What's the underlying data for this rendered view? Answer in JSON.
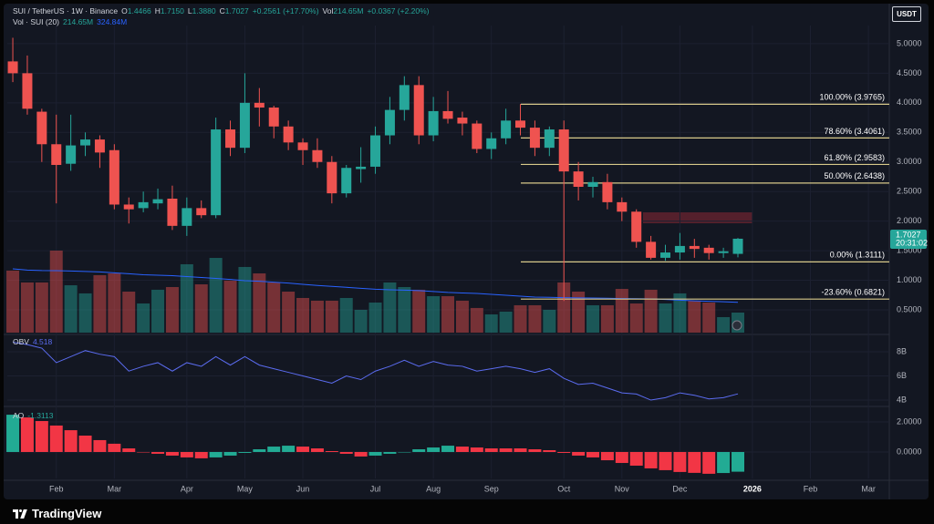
{
  "header": {
    "symbol": "SUI / TetherUS · 1W · Binance",
    "fields": [
      {
        "key": "O",
        "value": "1.4466"
      },
      {
        "key": "H",
        "value": "1.7150"
      },
      {
        "key": "L",
        "value": "1.3880"
      },
      {
        "key": "C",
        "value": "1.7027"
      }
    ],
    "change": "+0.2561 (+17.70%)",
    "volume_key": "Vol",
    "volume": "214.65M",
    "volume_change": "+0.0367 (+2.20%)"
  },
  "currency": "USDT",
  "brand": "TradingView",
  "chart_data": [
    {
      "type": "candlestick",
      "categories": [
        null,
        null,
        null,
        null,
        null,
        null,
        null,
        null,
        null,
        null,
        null,
        null,
        null,
        null,
        null,
        null,
        null,
        null,
        null,
        null,
        null,
        null,
        null,
        null,
        null,
        null,
        null,
        null,
        null,
        null,
        null,
        null,
        null,
        null,
        null,
        null,
        null,
        null,
        null,
        null,
        null,
        null,
        null,
        null,
        null,
        null,
        null,
        null,
        null,
        null,
        null
      ],
      "series": [
        {
          "name": "SUI / TetherUS · 1W · Binance",
          "open": [
            4.7,
            4.5,
            3.85,
            3.3,
            2.97,
            3.28,
            3.38,
            3.2,
            2.28,
            2.22,
            2.3,
            2.38,
            1.92,
            2.22,
            2.1,
            3.55,
            3.24,
            4.0,
            3.92,
            3.6,
            3.33,
            3.2,
            3.0,
            2.47,
            2.88,
            2.92,
            3.45,
            3.88,
            4.3,
            3.45,
            3.86,
            3.75,
            3.65,
            3.22,
            3.4,
            3.7,
            3.58,
            3.24,
            3.55,
            2.84,
            2.58,
            2.66,
            2.32,
            2.16,
            1.65,
            1.38,
            1.47,
            1.58,
            1.55,
            1.46,
            1.4466
          ],
          "high": [
            5.1,
            4.8,
            3.9,
            3.8,
            3.8,
            3.5,
            3.45,
            3.3,
            2.4,
            2.5,
            2.55,
            2.6,
            2.4,
            2.35,
            3.75,
            3.7,
            4.5,
            4.25,
            3.95,
            3.7,
            3.4,
            3.4,
            3.1,
            2.95,
            3.25,
            3.6,
            4.1,
            4.45,
            4.45,
            4.1,
            4.2,
            3.85,
            3.7,
            3.5,
            3.9,
            3.98,
            3.7,
            3.6,
            3.7,
            3.0,
            2.75,
            2.8,
            2.4,
            2.2,
            1.75,
            1.6,
            1.8,
            1.7,
            1.6,
            1.55,
            1.715
          ],
          "low": [
            4.35,
            3.8,
            3.0,
            2.3,
            2.85,
            3.1,
            2.9,
            2.2,
            1.96,
            2.15,
            2.2,
            1.85,
            1.75,
            2.05,
            2.05,
            3.1,
            3.15,
            3.6,
            3.4,
            3.2,
            2.95,
            2.9,
            2.3,
            2.4,
            2.65,
            2.8,
            3.3,
            3.7,
            3.3,
            3.35,
            3.65,
            3.45,
            3.15,
            3.05,
            3.3,
            3.45,
            3.1,
            3.1,
            0.65,
            2.35,
            2.4,
            2.2,
            2.0,
            1.55,
            1.35,
            1.33,
            1.35,
            1.38,
            1.35,
            1.38,
            1.388
          ],
          "close": [
            4.5,
            3.9,
            3.3,
            2.95,
            3.28,
            3.38,
            3.16,
            2.28,
            2.2,
            2.32,
            2.37,
            1.92,
            2.22,
            2.1,
            3.55,
            3.24,
            4.0,
            3.92,
            3.6,
            3.33,
            3.2,
            3.0,
            2.47,
            2.9,
            2.92,
            3.45,
            3.88,
            4.3,
            3.45,
            3.86,
            3.73,
            3.65,
            3.22,
            3.4,
            3.7,
            3.58,
            3.24,
            3.55,
            2.84,
            2.58,
            2.66,
            2.32,
            2.16,
            1.65,
            1.38,
            1.47,
            1.58,
            1.53,
            1.46,
            1.49,
            1.7027
          ]
        }
      ],
      "up_color": "#26a69a",
      "down_color": "#ef5350",
      "ylim": [
        0.115,
        5.307
      ],
      "yticks": [
        {
          "value": 0.5,
          "label": "0.5000"
        },
        {
          "value": 1,
          "label": "1.0000"
        },
        {
          "value": 1.5,
          "label": "1.5000"
        },
        {
          "value": 2,
          "label": "2.0000"
        },
        {
          "value": 2.5,
          "label": "2.5000"
        },
        {
          "value": 3,
          "label": "3.0000"
        },
        {
          "value": 3.5,
          "label": "3.5000"
        },
        {
          "value": 4,
          "label": "4.0000"
        },
        {
          "value": 4.5,
          "label": "4.5000"
        },
        {
          "value": 5,
          "label": "5.0000"
        }
      ],
      "xlim": [
        -0.38,
        60.44
      ],
      "xticks": [
        {
          "value": 3,
          "label": "Feb"
        },
        {
          "value": 7,
          "label": "Mar"
        },
        {
          "value": 12,
          "label": "Apr"
        },
        {
          "value": 16,
          "label": "May"
        },
        {
          "value": 20,
          "label": "Jun"
        },
        {
          "value": 25,
          "label": "Jul"
        },
        {
          "value": 29,
          "label": "Aug"
        },
        {
          "value": 33,
          "label": "Sep"
        },
        {
          "value": 38,
          "label": "Oct"
        },
        {
          "value": 42,
          "label": "Nov"
        },
        {
          "value": 46,
          "label": "Dec"
        },
        {
          "value": 51,
          "label": "2026"
        },
        {
          "value": 55,
          "label": "Feb"
        },
        {
          "value": 59,
          "label": "Mar"
        }
      ],
      "grid": true,
      "volume": {
        "name": "Vol · SUI (20)",
        "values": [
          664,
          537,
          537,
          878,
          507,
          420,
          615,
          634,
          439,
          312,
          459,
          488,
          732,
          517,
          800,
          556,
          703,
          634,
          537,
          439,
          371,
          342,
          342,
          371,
          244,
          322,
          537,
          488,
          459,
          390,
          390,
          342,
          264,
          195,
          225,
          293,
          293,
          244,
          537,
          439,
          293,
          293,
          468,
          312,
          459,
          312,
          420,
          342,
          322,
          166,
          214.65
        ],
        "last_label": "214.65M",
        "ylim": [
          0,
          3288
        ],
        "ma": {
          "values": [
            683,
            670,
            665,
            664,
            660,
            655,
            650,
            640,
            630,
            620,
            615,
            610,
            600,
            590,
            580,
            570,
            556,
            550,
            540,
            530,
            517,
            505,
            495,
            485,
            475,
            465,
            459,
            455,
            450,
            440,
            430,
            425,
            420,
            410,
            400,
            390,
            381,
            378,
            375,
            372,
            371,
            368,
            365,
            363,
            361,
            355,
            348,
            340,
            335,
            330,
            324.84
          ],
          "last_label": "324.84M",
          "color": "#2962ff"
        }
      },
      "fib_color": "#d8c98a",
      "fib_levels": [
        {
          "value": 3.9765,
          "label": "100.00% (3.9765)"
        },
        {
          "value": 3.4061,
          "label": "78.60% (3.4061)"
        },
        {
          "value": 2.9583,
          "label": "61.80% (2.9583)"
        },
        {
          "value": 2.6438,
          "label": "50.00% (2.6438)"
        },
        {
          "value": 1.3111,
          "label": "0.00% (1.3111)"
        },
        {
          "value": 0.6821,
          "label": "-23.60% (0.6821)"
        }
      ],
      "countdown": "20:31:02"
    },
    {
      "type": "line",
      "series": [
        {
          "name": "OBV",
          "color": "#5b6cf0",
          "values": [
            8.8,
            8.6,
            8.3,
            7.1,
            7.6,
            8.1,
            7.8,
            7.6,
            6.4,
            6.8,
            7.1,
            6.4,
            7.1,
            6.8,
            7.6,
            6.9,
            7.6,
            6.9,
            6.6,
            6.3,
            6.0,
            5.7,
            5.4,
            6.0,
            5.7,
            6.4,
            6.8,
            7.3,
            6.8,
            7.2,
            6.9,
            6.8,
            6.4,
            6.6,
            6.8,
            6.6,
            6.3,
            6.6,
            5.8,
            5.3,
            5.4,
            5.0,
            4.6,
            4.5,
            4.0,
            4.2,
            4.6,
            4.4,
            4.1,
            4.2,
            4.518
          ]
        }
      ],
      "ylim": [
        3.55,
        9.21
      ],
      "yticks": [
        {
          "value": 4,
          "label": "4B"
        },
        {
          "value": 6,
          "label": "6B"
        },
        {
          "value": 8,
          "label": "8B"
        }
      ]
    },
    {
      "type": "bar",
      "series": [
        {
          "name": "AO",
          "up_color": "#22ab94",
          "down_color": "#f23645",
          "values": [
            2.48,
            2.3,
            2.06,
            1.76,
            1.45,
            1.09,
            0.79,
            0.55,
            0.24,
            0.0,
            -0.12,
            -0.24,
            -0.36,
            -0.42,
            -0.36,
            -0.24,
            -0.06,
            0.18,
            0.36,
            0.42,
            0.36,
            0.24,
            0.06,
            -0.12,
            -0.3,
            -0.24,
            -0.12,
            0.0,
            0.18,
            0.3,
            0.42,
            0.36,
            0.3,
            0.24,
            0.24,
            0.24,
            0.18,
            0.12,
            -0.06,
            -0.24,
            -0.36,
            -0.55,
            -0.73,
            -0.91,
            -1.09,
            -1.21,
            -1.33,
            -1.39,
            -1.45,
            -1.4,
            -1.3113
          ]
        }
      ],
      "ylim": [
        -1.76,
        2.91
      ],
      "yticks": [
        {
          "value": 0,
          "label": "0.0000"
        },
        {
          "value": 2,
          "label": "2.0000"
        }
      ]
    }
  ]
}
